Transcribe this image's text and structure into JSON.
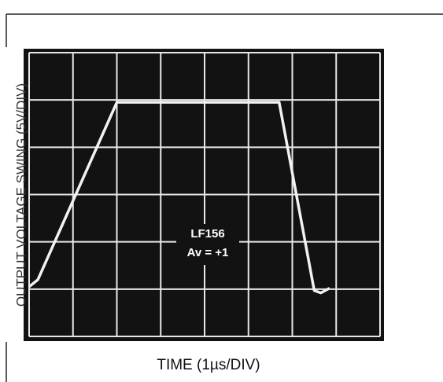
{
  "chart_data": {
    "type": "line",
    "xlabel": "TIME (1µs/DIV)",
    "ylabel": "OUTPUT VOLTAGE SWING (5V/DIV)",
    "annotation": [
      "LF156",
      "Av = +1"
    ],
    "x": [
      0,
      0.2,
      2.0,
      5.7,
      6.5,
      6.65,
      6.85
    ],
    "series": [
      {
        "color": "#f2f2f2",
        "values": [
          1.05,
          1.2,
          4.95,
          4.95,
          0.97,
          0.92,
          1.02
        ]
      }
    ],
    "xlim": [
      0,
      8
    ],
    "ylim": [
      0,
      6
    ],
    "xticks": [
      0,
      1,
      2,
      3,
      4,
      5,
      6,
      7,
      8
    ],
    "yticks": [
      0,
      1,
      2,
      3,
      4,
      5,
      6
    ],
    "grid": true,
    "background": "#121212",
    "grid_color": "#e8e8e8"
  }
}
